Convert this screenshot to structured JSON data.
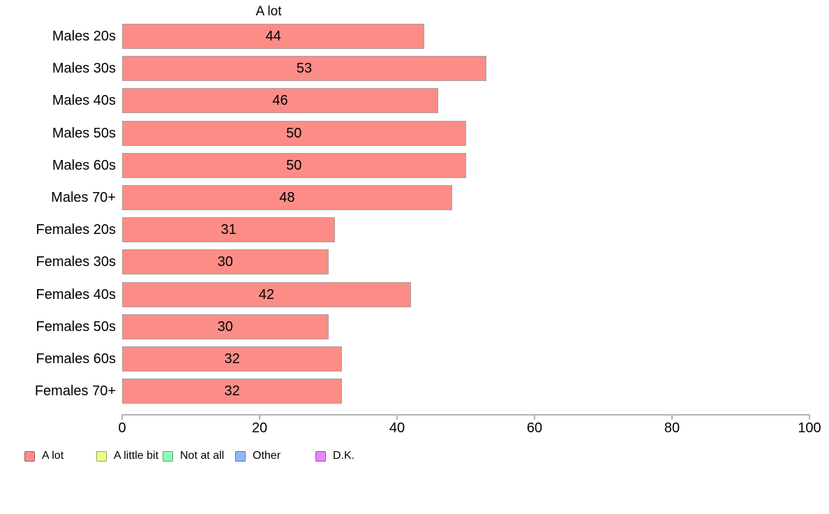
{
  "chart_data": {
    "type": "bar",
    "orientation": "horizontal",
    "title": "A lot",
    "categories": [
      "Males 20s",
      "Males 30s",
      "Males 40s",
      "Males 50s",
      "Males 60s",
      "Males 70+",
      "Females 20s",
      "Females 30s",
      "Females 40s",
      "Females 50s",
      "Females 60s",
      "Females 70+"
    ],
    "values": [
      44,
      53,
      46,
      50,
      50,
      48,
      31,
      30,
      42,
      30,
      32,
      32
    ],
    "value_labels_shown": true,
    "xlim": [
      0,
      100
    ],
    "x_ticks": [
      "0",
      "20",
      "40",
      "60",
      "80",
      "100"
    ],
    "grid": false,
    "bar_color": "#FC8D86",
    "bar_border_color": "#A9A0A0",
    "axis_color": "#B3B3B3",
    "legend_position": "bottom",
    "legend": [
      {
        "label": "A lot",
        "color": "#FC8D86"
      },
      {
        "label": "A little bit",
        "color": "#E9FC8B"
      },
      {
        "label": "Not at all",
        "color": "#8FFCB2"
      },
      {
        "label": "Other",
        "color": "#90B5FC"
      },
      {
        "label": "D.K.",
        "color": "#E685FC"
      }
    ]
  }
}
